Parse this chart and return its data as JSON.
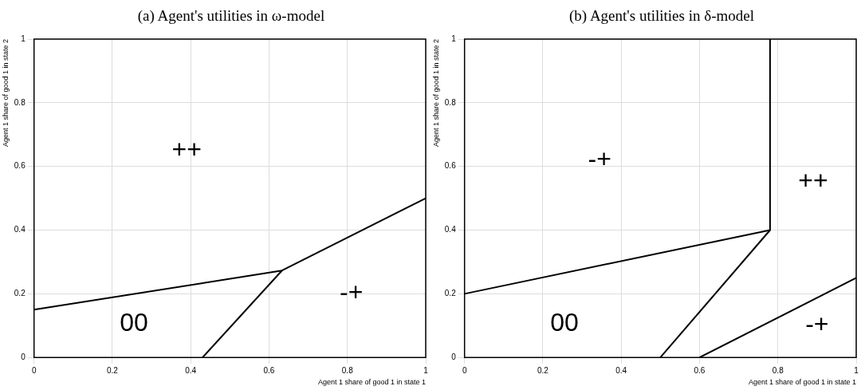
{
  "chart_data": [
    {
      "type": "line",
      "title": "(a) Agent's utilities in ω-model",
      "xlabel": "Agent 1 share of good 1 in state 1",
      "ylabel": "Agent 1 share of good 1 in state 2",
      "xlim": [
        0,
        1
      ],
      "ylim": [
        0,
        1
      ],
      "xticks": [
        0,
        0.2,
        0.4,
        0.6,
        0.8,
        1
      ],
      "yticks": [
        0,
        0.2,
        0.4,
        0.6,
        0.8,
        1
      ],
      "grid": true,
      "legend": false,
      "series": [
        {
          "color": "#000000",
          "x": [
            0,
            0.633,
            1
          ],
          "values": [
            0.15,
            0.273,
            0.5
          ]
        },
        {
          "color": "#000000",
          "x": [
            0.43,
            0.633
          ],
          "values": [
            0,
            0.273
          ]
        }
      ],
      "annotations": [
        "++",
        "-+",
        "00"
      ]
    },
    {
      "type": "line",
      "title": "(b) Agent's utilities in δ-model",
      "xlabel": "Agent 1 share of good 1 in state 1",
      "ylabel": "Agent 1 share of good 1 in state 2",
      "xlim": [
        0,
        1
      ],
      "ylim": [
        0,
        1
      ],
      "xticks": [
        0,
        0.2,
        0.4,
        0.6,
        0.8,
        1
      ],
      "yticks": [
        0,
        0.2,
        0.4,
        0.6,
        0.8,
        1
      ],
      "grid": true,
      "legend": false,
      "series": [
        {
          "color": "#000000",
          "x": [
            0,
            0.78,
            0.78
          ],
          "values": [
            0.2,
            0.4,
            1
          ]
        },
        {
          "color": "#000000",
          "x": [
            0.5,
            0.78
          ],
          "values": [
            0,
            0.4
          ]
        },
        {
          "color": "#000000",
          "x": [
            0.6,
            1
          ],
          "values": [
            0,
            0.25
          ]
        }
      ],
      "annotations": [
        "-+",
        "++",
        "00",
        "-+"
      ]
    }
  ]
}
